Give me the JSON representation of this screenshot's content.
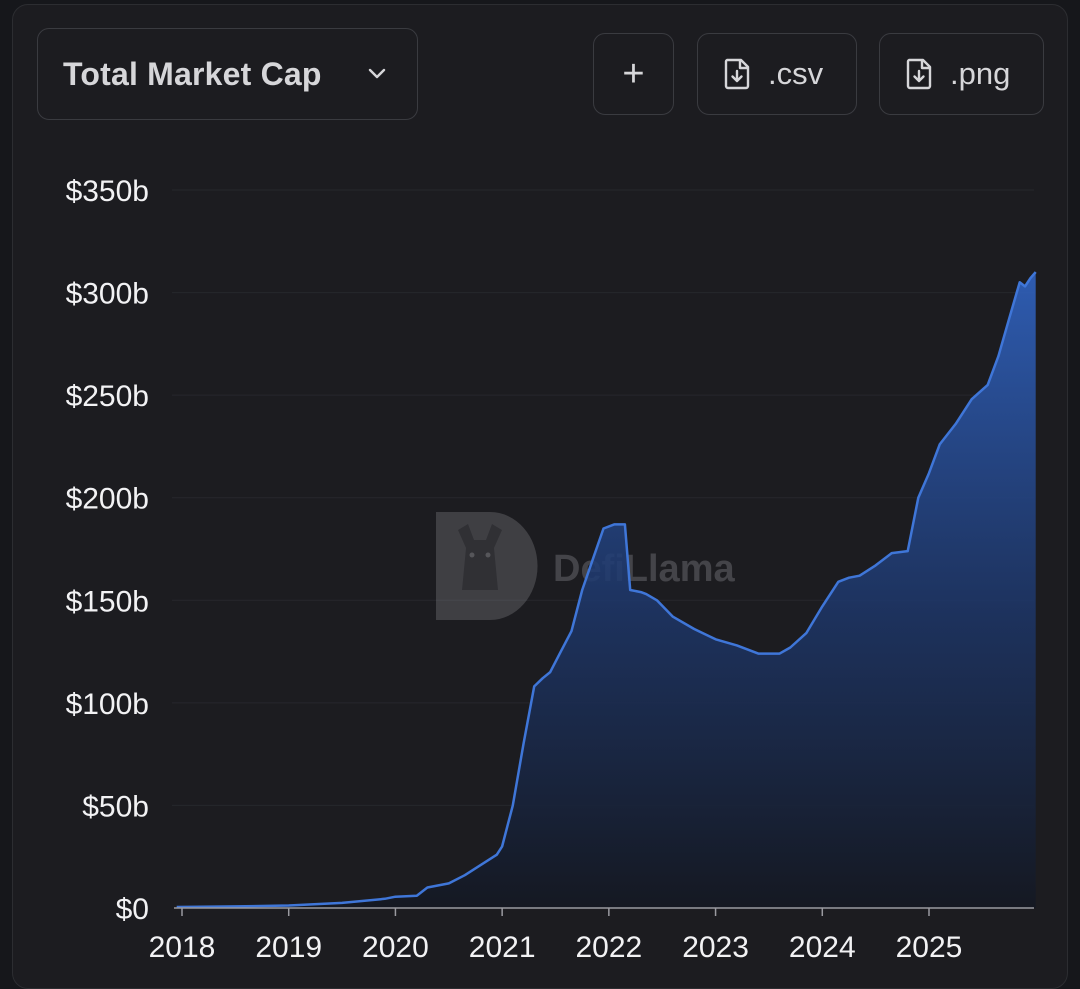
{
  "toolbar": {
    "metric_label": "Total Market Cap",
    "add_label": "+",
    "csv_label": ".csv",
    "png_label": ".png"
  },
  "watermark": {
    "text": "DefiLlama"
  },
  "colors": {
    "background": "#1c1c20",
    "line": "#3f76d8",
    "area_top": "#2f5fb8",
    "area_bottom": "#141822",
    "grid": "#26272c",
    "text": "#f2f2f4"
  },
  "chart_data": {
    "type": "area",
    "title": "",
    "xlabel": "",
    "ylabel": "",
    "ylim": [
      0,
      350
    ],
    "y_unit": "billion USD",
    "yticks": [
      "$0",
      "$50b",
      "$100b",
      "$150b",
      "$200b",
      "$250b",
      "$300b",
      "$350b"
    ],
    "ytick_values": [
      0,
      50,
      100,
      150,
      200,
      250,
      300,
      350
    ],
    "xticks": [
      "2018",
      "2019",
      "2020",
      "2021",
      "2022",
      "2023",
      "2024",
      "2025"
    ],
    "xtick_values": [
      2018,
      2019,
      2020,
      2021,
      2022,
      2023,
      2024,
      2025
    ],
    "xlim": [
      2018,
      2026
    ],
    "grid": "horizontal",
    "legend": "none",
    "series": [
      {
        "x": [
          2017.95,
          2018.5,
          2019.0,
          2019.5,
          2019.9,
          2020.0,
          2020.2,
          2020.3,
          2020.5,
          2020.65,
          2020.8,
          2020.95,
          2021.0,
          2021.1,
          2021.2,
          2021.3,
          2021.38,
          2021.45,
          2021.55,
          2021.65,
          2021.75,
          2021.85,
          2021.95,
          2022.05,
          2022.15,
          2022.2,
          2022.3,
          2022.35,
          2022.45,
          2022.6,
          2022.8,
          2023.0,
          2023.2,
          2023.4,
          2023.6,
          2023.7,
          2023.85,
          2024.0,
          2024.15,
          2024.25,
          2024.35,
          2024.5,
          2024.65,
          2024.8,
          2024.9,
          2025.0,
          2025.1,
          2025.25,
          2025.4,
          2025.55,
          2025.65,
          2025.75,
          2025.85,
          2025.9,
          2025.95,
          2026.0
        ],
        "y": [
          0.5,
          0.8,
          1.2,
          2.5,
          4.5,
          5.5,
          6.0,
          10.0,
          12.0,
          16.0,
          21.0,
          26.0,
          30.0,
          50.0,
          80.0,
          108.0,
          112.0,
          115.0,
          125.0,
          135.0,
          155.0,
          170.0,
          185.0,
          187.0,
          187.0,
          155.0,
          154.0,
          153.0,
          150.0,
          142.0,
          136.0,
          131.0,
          128.0,
          124.0,
          124.0,
          127.0,
          134.0,
          147.0,
          159.0,
          161.0,
          162.0,
          167.0,
          173.0,
          174.0,
          200.0,
          212.0,
          226.0,
          236.0,
          248.0,
          255.0,
          269.0,
          287.0,
          305.0,
          303.0,
          307.0,
          310.0
        ]
      }
    ]
  }
}
